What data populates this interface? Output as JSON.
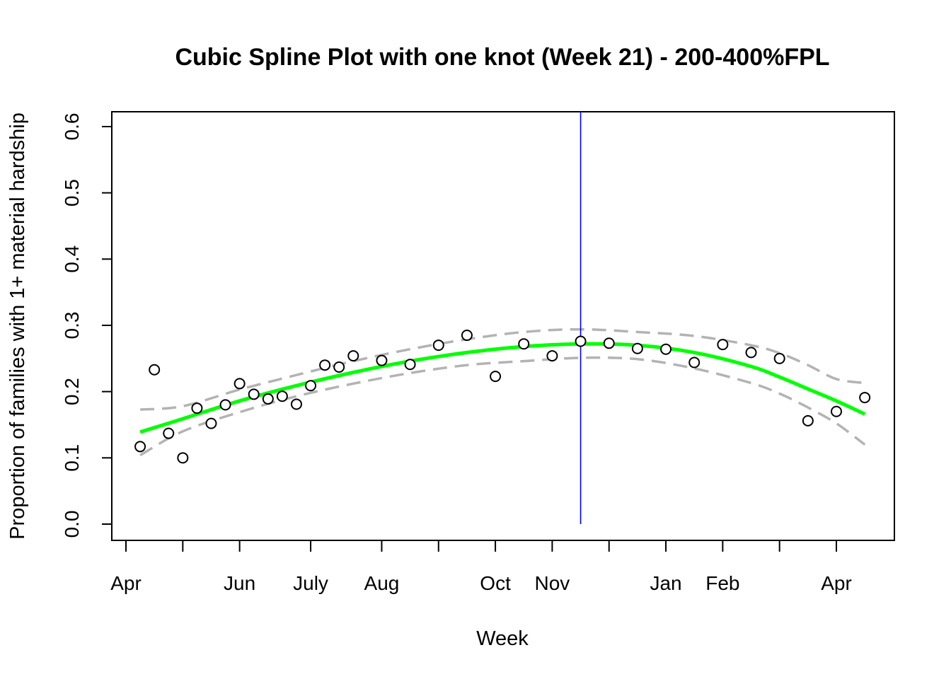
{
  "chart_data": {
    "type": "scatter",
    "title": "Cubic Spline Plot with one knot (Week 21) - 200-400%FPL",
    "xlabel": "Week",
    "ylabel": "Proportion of families with 1+ material hardship",
    "ylim": [
      0,
      0.6
    ],
    "xlim": [
      1,
      52
    ],
    "y_ticks": [
      "0.0",
      "0.1",
      "0.2",
      "0.3",
      "0.4",
      "0.5",
      "0.6"
    ],
    "x_ticks": [
      {
        "x": 0,
        "label": "Apr"
      },
      {
        "x": 4,
        "label": ""
      },
      {
        "x": 8,
        "label": "Jun"
      },
      {
        "x": 13,
        "label": "July"
      },
      {
        "x": 18,
        "label": "Aug"
      },
      {
        "x": 22,
        "label": ""
      },
      {
        "x": 26,
        "label": "Oct"
      },
      {
        "x": 30,
        "label": "Nov"
      },
      {
        "x": 34,
        "label": ""
      },
      {
        "x": 38,
        "label": "Jan"
      },
      {
        "x": 42,
        "label": "Feb"
      },
      {
        "x": 46,
        "label": ""
      },
      {
        "x": 50,
        "label": "Apr"
      }
    ],
    "knot": {
      "x": 32,
      "label": "Week 21",
      "color": "#0000ff"
    },
    "series": [
      {
        "kind": "points",
        "x": [
          1,
          2,
          3,
          4,
          5,
          6,
          7,
          8,
          9,
          10,
          11,
          12,
          13,
          14,
          15,
          16,
          18,
          20,
          22,
          24,
          26,
          28,
          30,
          32,
          34,
          36,
          38,
          40,
          42,
          44,
          46,
          48,
          50,
          52
        ],
        "y": [
          0.117,
          0.233,
          0.137,
          0.1,
          0.175,
          0.152,
          0.18,
          0.212,
          0.196,
          0.189,
          0.193,
          0.181,
          0.209,
          0.24,
          0.237,
          0.254,
          0.247,
          0.241,
          0.27,
          0.285,
          0.223,
          0.272,
          0.254,
          0.276,
          0.273,
          0.265,
          0.264,
          0.244,
          0.271,
          0.259,
          0.25,
          0.156,
          0.17,
          0.191
        ]
      },
      {
        "kind": "fit",
        "color": "#00ff00",
        "x": [
          1,
          4,
          8,
          12,
          16,
          20,
          24,
          28,
          32,
          36,
          40,
          44,
          46,
          48,
          50,
          52
        ],
        "y": [
          0.139,
          0.159,
          0.186,
          0.209,
          0.229,
          0.246,
          0.259,
          0.268,
          0.272,
          0.27,
          0.259,
          0.238,
          0.222,
          0.204,
          0.186,
          0.166
        ]
      },
      {
        "kind": "ci-upper",
        "color": "#b3b3b3",
        "x": [
          1,
          4,
          8,
          12,
          16,
          20,
          24,
          28,
          32,
          36,
          40,
          44,
          46,
          48,
          50,
          52
        ],
        "y": [
          0.173,
          0.178,
          0.203,
          0.225,
          0.246,
          0.264,
          0.279,
          0.29,
          0.294,
          0.29,
          0.284,
          0.27,
          0.258,
          0.24,
          0.219,
          0.213
        ]
      },
      {
        "kind": "ci-lower",
        "color": "#b3b3b3",
        "x": [
          1,
          4,
          8,
          12,
          16,
          20,
          24,
          28,
          32,
          36,
          40,
          44,
          46,
          48,
          50,
          52
        ],
        "y": [
          0.104,
          0.14,
          0.169,
          0.193,
          0.212,
          0.228,
          0.24,
          0.246,
          0.251,
          0.249,
          0.235,
          0.213,
          0.197,
          0.176,
          0.152,
          0.12
        ]
      }
    ]
  }
}
